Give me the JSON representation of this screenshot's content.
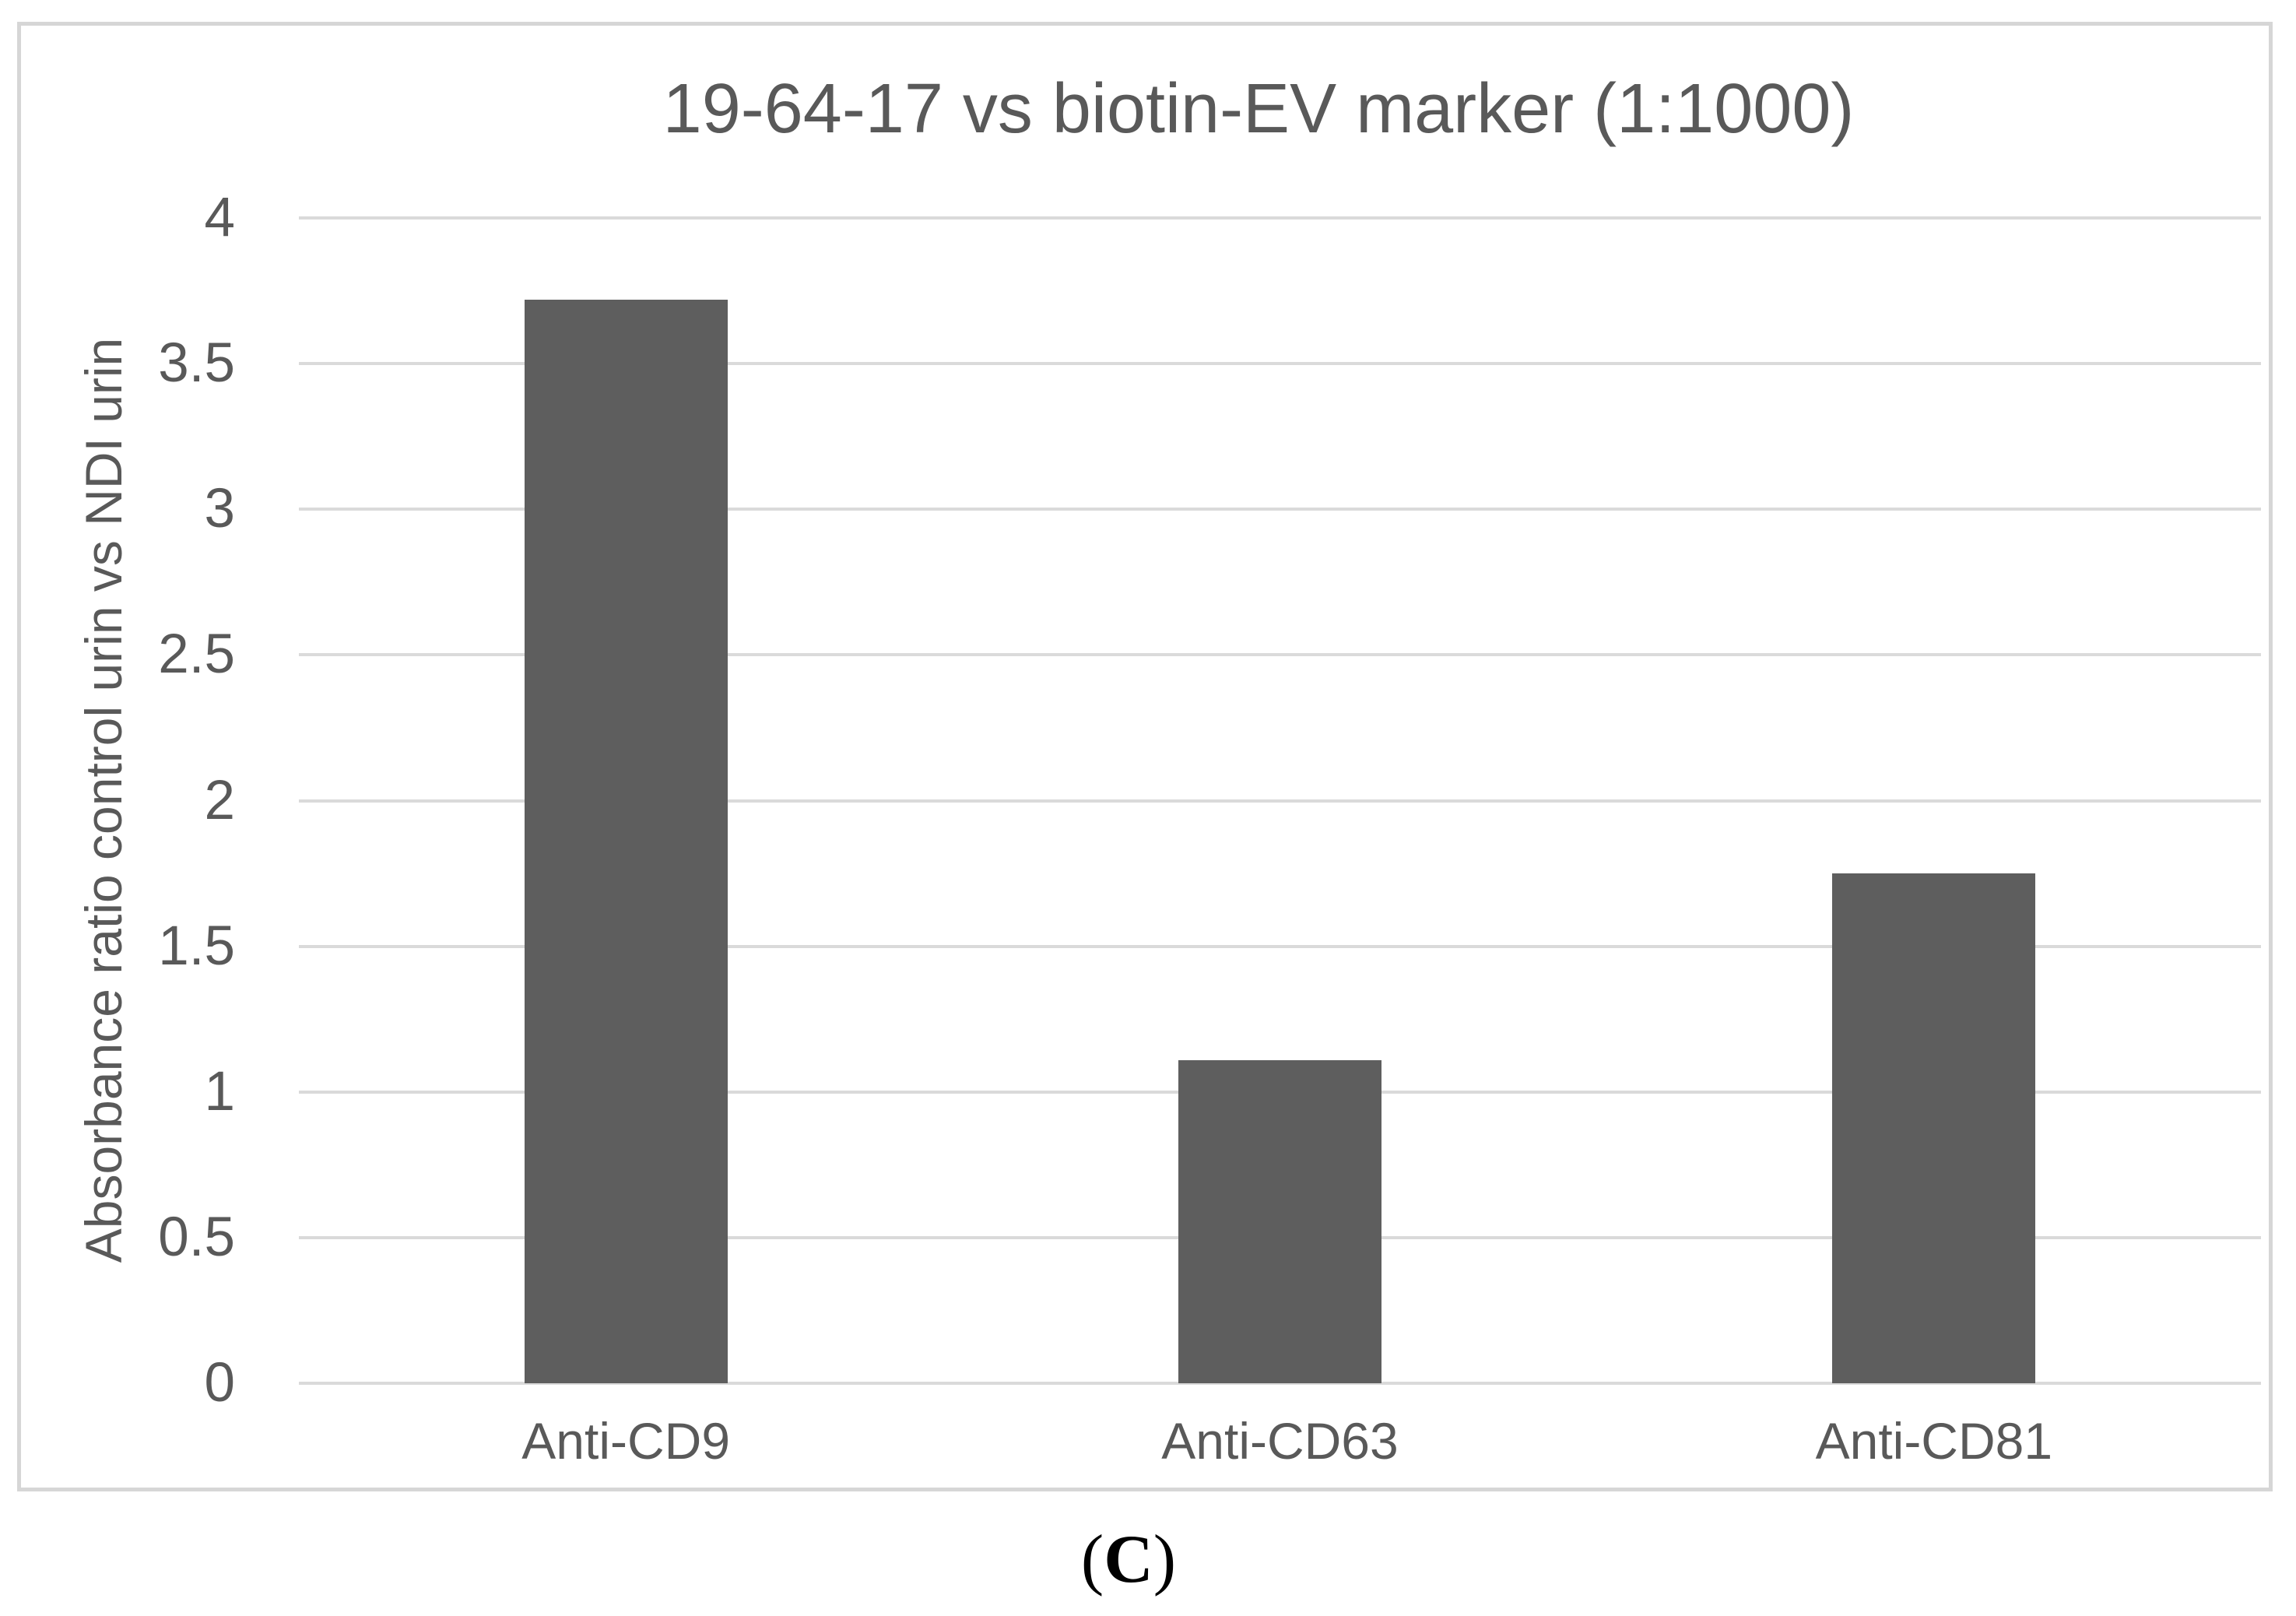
{
  "chart_data": {
    "type": "bar",
    "title": "19-64-17 vs biotin-EV marker (1:1000)",
    "ylabel": "Absorbance ratio control urin vs NDI urin",
    "xlabel": "",
    "categories": [
      "Anti-CD9",
      "Anti-CD63",
      "Anti-CD81"
    ],
    "values": [
      3.72,
      1.11,
      1.75
    ],
    "ylim": [
      0,
      4
    ],
    "yticks": [
      0,
      0.5,
      1,
      1.5,
      2,
      2.5,
      3,
      3.5,
      4
    ],
    "grid": true,
    "legend": false,
    "bar_color": "#5e5e5e",
    "grid_color": "#dadada",
    "text_color": "#595959",
    "frame_border_color": "#d6d6d6"
  },
  "caption": {
    "open": "(",
    "letter": "C",
    "close": ")"
  }
}
